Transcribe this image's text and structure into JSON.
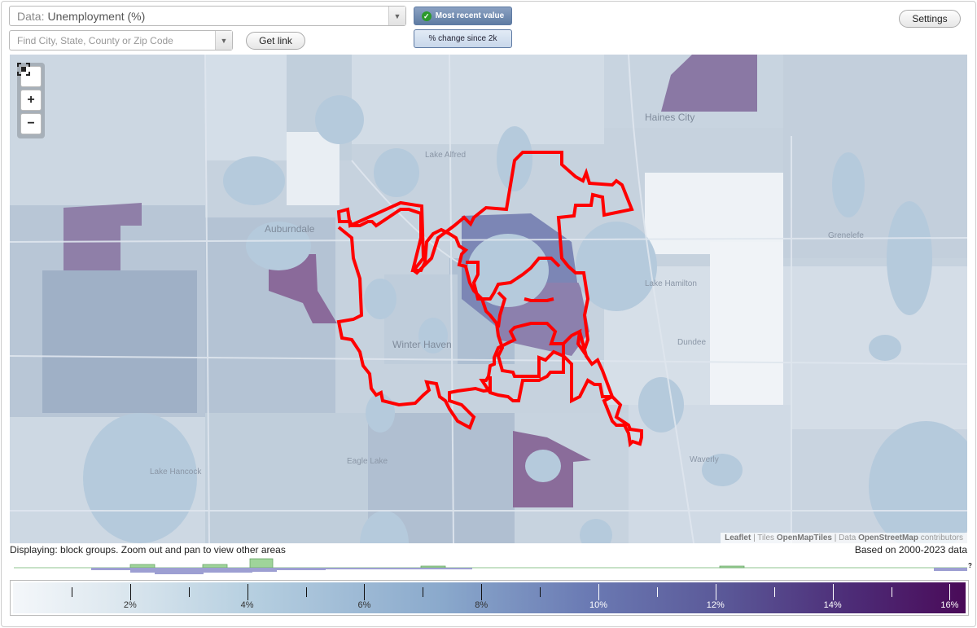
{
  "controls": {
    "data_label": "Data:",
    "data_value": "Unemployment (%)",
    "search_placeholder": "Find City, State, County or Zip Code",
    "get_link": "Get link",
    "mode_recent": "Most recent value",
    "mode_change": "% change since 2k",
    "settings": "Settings"
  },
  "map": {
    "zoom_in": "+",
    "zoom_out": "−",
    "places": {
      "haines_city": "Haines City",
      "lake_alfred": "Lake Alfred",
      "auburndale": "Auburndale",
      "grenelefe": "Grenelefe",
      "lake_hamilton": "Lake Hamilton",
      "winter_haven": "Winter Haven",
      "dundee": "Dundee",
      "lake_hancock": "Lake Hancock",
      "eagle_lake": "Eagle Lake",
      "waverly": "Waverly"
    },
    "attribution": {
      "leaflet": "Leaflet",
      "sep1": " | Tiles ",
      "tiles": "OpenMapTiles",
      "sep2": " | Data ",
      "data": "OpenStreetMap",
      "contrib": " contributors"
    },
    "highlight_color": "#ff0000"
  },
  "status": {
    "displaying": "Displaying: block groups. Zoom out and pan to view other areas",
    "based_on": "Based on 2000-2023 data"
  },
  "histogram_help": "?",
  "legend": {
    "ticks": [
      "2%",
      "4%",
      "6%",
      "8%",
      "10%",
      "12%",
      "14%",
      "16%"
    ],
    "min": 0,
    "max": 16.3
  }
}
